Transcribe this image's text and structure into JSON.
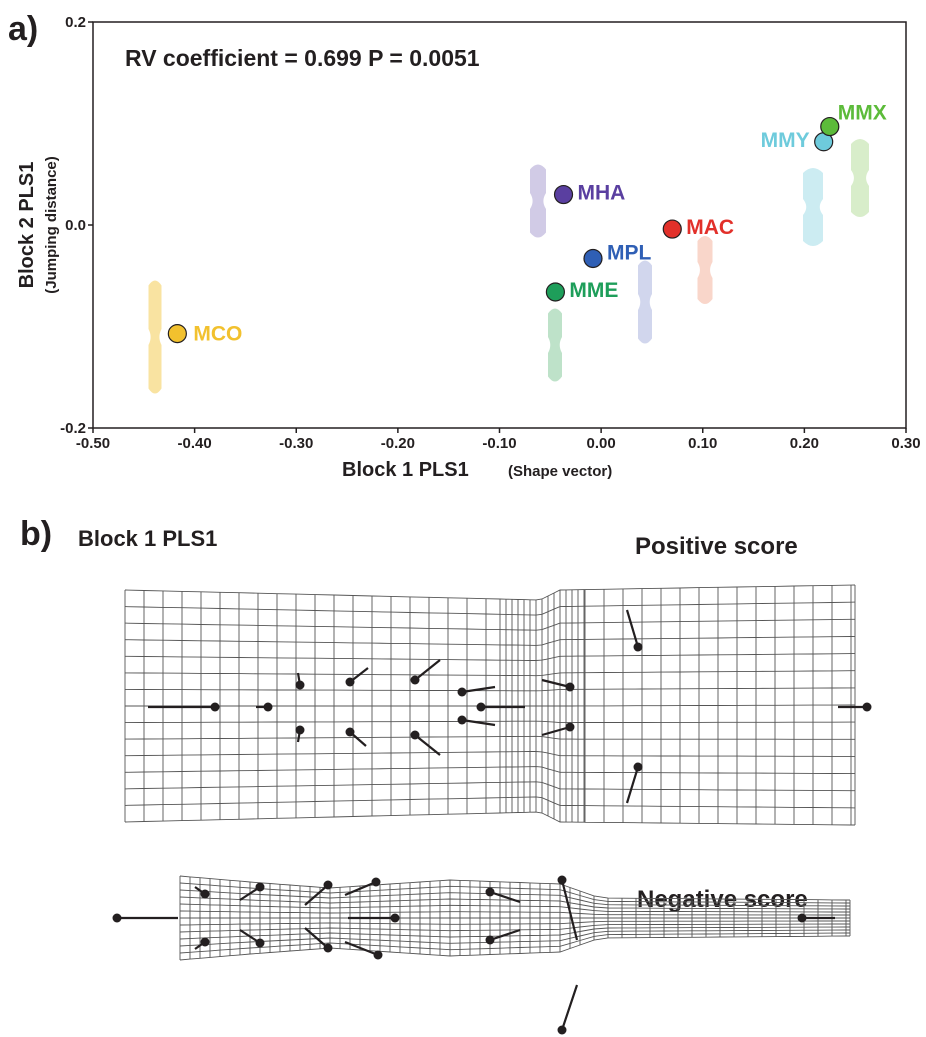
{
  "panel_a_label": "a)",
  "chart_data": {
    "type": "scatter",
    "annotation": "RV coefficient = 0.699 P = 0.0051",
    "x_label": "Block 1 PLS1",
    "x_label_note": "(Shape vector)",
    "y_label": "Block 2 PLS1",
    "y_label_note": "(Jumping distance)",
    "xlim": [
      -0.5,
      0.3
    ],
    "xticks": [
      {
        "value": -0.5,
        "label": "-0.50"
      },
      {
        "value": -0.4,
        "label": "-0.40"
      },
      {
        "value": -0.3,
        "label": "-0.30"
      },
      {
        "value": -0.2,
        "label": "-0.20"
      },
      {
        "value": -0.1,
        "label": "-0.10"
      },
      {
        "value": 0,
        "label": "0.00"
      },
      {
        "value": 0.1,
        "label": "0.10"
      },
      {
        "value": 0.2,
        "label": "0.20"
      },
      {
        "value": 0.3,
        "label": "0.30"
      }
    ],
    "ylim": [
      -0.2,
      0.2
    ],
    "yticks": [
      -0.2,
      {
        "value": 0,
        "label": "0.0"
      },
      0.2
    ],
    "series": [
      {
        "name": "MCO",
        "color": "#f2c12e",
        "x": [
          -0.417
        ],
        "values": [
          -0.107
        ]
      },
      {
        "name": "MHA",
        "color": "#5a3fa0",
        "x": [
          -0.037
        ],
        "values": [
          0.03
        ]
      },
      {
        "name": "MPL",
        "color": "#2f5fb5",
        "x": [
          -0.008
        ],
        "values": [
          -0.033
        ]
      },
      {
        "name": "MAC",
        "color": "#e2302a",
        "x": [
          0.07
        ],
        "values": [
          -0.004
        ]
      },
      {
        "name": "MME",
        "color": "#1e9e5a",
        "x": [
          -0.045
        ],
        "values": [
          -0.066
        ]
      },
      {
        "name": "MMY",
        "color": "#6ecbdc",
        "x": [
          0.219
        ],
        "values": [
          0.082
        ]
      },
      {
        "name": "MMX",
        "color": "#5cbb3a",
        "x": [
          0.225
        ],
        "values": [
          0.097
        ]
      }
    ]
  },
  "panel_b": {
    "label": "b)",
    "title": "Block 1 PLS1",
    "positive": "Positive score",
    "negative": "Negative score"
  }
}
